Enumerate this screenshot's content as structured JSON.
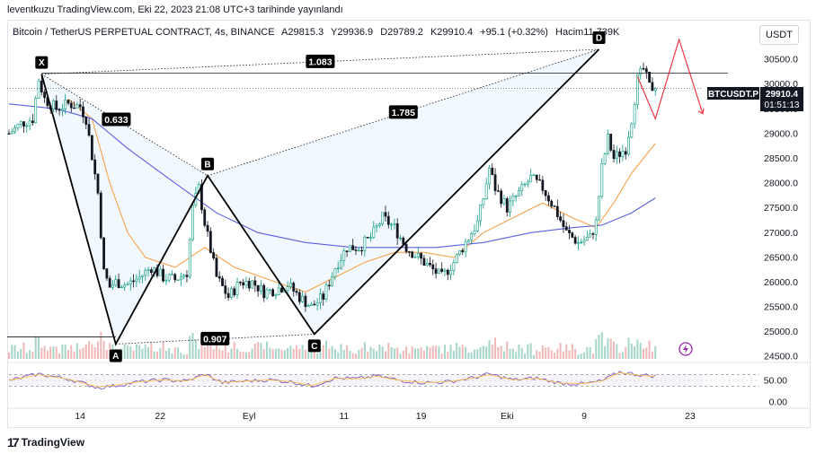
{
  "header": {
    "credit": "leventkuzu TradingView.com, Eki 22, 2023 21:08 UTC+3 tarihinde yayınlandı"
  },
  "legend": {
    "symbol": "Bitcoin / TetherUS PERPETUAL CONTRACT, 4s, BINANCE",
    "open": "A29815.3",
    "high": "Y29936.9",
    "low": "D29789.2",
    "close": "K29910.4",
    "change": "+95.1 (+0.32%)",
    "volume": "Hacim11.739K"
  },
  "currency_button": "USDT",
  "footer": {
    "brand": "TradingView"
  },
  "price_tag": {
    "ticker": "BTCUSDT.P",
    "price": "29910.4",
    "countdown": "01:51:13"
  },
  "colors": {
    "up": "#089981",
    "down": "#131722",
    "ma_fast": "#f7a14a",
    "ma_slow": "#5b5fe0",
    "pattern": "#000000",
    "projection": "#f23645",
    "rsi": "#7e57c2"
  },
  "chart_data": {
    "type": "candlestick",
    "x_ticks": [
      "14",
      "22",
      "Eyl",
      "11",
      "19",
      "Eki",
      "9",
      "23"
    ],
    "y_ticks": [
      "30500.0",
      "30000.0",
      "29500.0",
      "29000.0",
      "28500.0",
      "28000.0",
      "27500.0",
      "27000.0",
      "26500.0",
      "26000.0",
      "25500.0",
      "25000.0",
      "24500.0"
    ],
    "ylim": [
      24450,
      30900
    ],
    "close_price": 29910.4,
    "price_path": [
      [
        0,
        29000
      ],
      [
        2,
        29200
      ],
      [
        4,
        29300
      ],
      [
        5,
        30100
      ],
      [
        6,
        29700
      ],
      [
        8,
        29500
      ],
      [
        10,
        29600
      ],
      [
        12,
        29550
      ],
      [
        13,
        29300
      ],
      [
        15,
        27800
      ],
      [
        16,
        26200
      ],
      [
        17,
        25900
      ],
      [
        18,
        26000
      ],
      [
        20,
        25950
      ],
      [
        22,
        26100
      ],
      [
        24,
        26300
      ],
      [
        26,
        26100
      ],
      [
        28,
        26050
      ],
      [
        30,
        26200
      ],
      [
        31,
        27500
      ],
      [
        32,
        27900
      ],
      [
        33,
        27200
      ],
      [
        35,
        26100
      ],
      [
        37,
        25700
      ],
      [
        39,
        26000
      ],
      [
        41,
        26000
      ],
      [
        43,
        25800
      ],
      [
        45,
        25850
      ],
      [
        47,
        25950
      ],
      [
        49,
        25700
      ],
      [
        51,
        25500
      ],
      [
        53,
        25700
      ],
      [
        55,
        26300
      ],
      [
        57,
        26700
      ],
      [
        59,
        26700
      ],
      [
        61,
        26900
      ],
      [
        63,
        27300
      ],
      [
        65,
        27100
      ],
      [
        67,
        26700
      ],
      [
        69,
        26500
      ],
      [
        71,
        26300
      ],
      [
        73,
        26100
      ],
      [
        75,
        26400
      ],
      [
        77,
        26800
      ],
      [
        79,
        27200
      ],
      [
        80,
        27700
      ],
      [
        81,
        28300
      ],
      [
        82,
        27900
      ],
      [
        84,
        27500
      ],
      [
        86,
        27800
      ],
      [
        88,
        28100
      ],
      [
        90,
        27900
      ],
      [
        92,
        27500
      ],
      [
        94,
        27000
      ],
      [
        96,
        26800
      ],
      [
        98,
        26900
      ],
      [
        99,
        27200
      ],
      [
        100,
        28300
      ],
      [
        101,
        28900
      ],
      [
        102,
        28500
      ],
      [
        104,
        28700
      ],
      [
        105,
        29300
      ],
      [
        106,
        30100
      ],
      [
        107,
        30300
      ],
      [
        108,
        29950
      ],
      [
        109,
        29910.4
      ]
    ],
    "moving_averages": [
      {
        "name": "fast",
        "values": [
          [
            10,
            29700
          ],
          [
            14,
            29300
          ],
          [
            17,
            28000
          ],
          [
            20,
            27000
          ],
          [
            23,
            26500
          ],
          [
            28,
            26300
          ],
          [
            33,
            26700
          ],
          [
            38,
            26300
          ],
          [
            45,
            26000
          ],
          [
            50,
            25800
          ],
          [
            55,
            26100
          ],
          [
            60,
            26400
          ],
          [
            65,
            26600
          ],
          [
            70,
            26600
          ],
          [
            75,
            26500
          ],
          [
            80,
            27000
          ],
          [
            85,
            27300
          ],
          [
            90,
            27600
          ],
          [
            95,
            27300
          ],
          [
            99,
            27100
          ],
          [
            102,
            27600
          ],
          [
            105,
            28200
          ],
          [
            109,
            28800
          ]
        ]
      },
      {
        "name": "slow",
        "values": [
          [
            0,
            29600
          ],
          [
            8,
            29500
          ],
          [
            14,
            29300
          ],
          [
            20,
            28700
          ],
          [
            28,
            28000
          ],
          [
            35,
            27400
          ],
          [
            42,
            27000
          ],
          [
            50,
            26800
          ],
          [
            58,
            26700
          ],
          [
            66,
            26700
          ],
          [
            72,
            26700
          ],
          [
            80,
            26800
          ],
          [
            88,
            27000
          ],
          [
            95,
            27100
          ],
          [
            100,
            27150
          ],
          [
            105,
            27400
          ],
          [
            109,
            27700
          ]
        ]
      }
    ],
    "pattern_points": [
      {
        "label": "X",
        "t": 5.5,
        "price": 30200
      },
      {
        "label": "A",
        "t": 18,
        "price": 24750
      },
      {
        "label": "B",
        "t": 33.5,
        "price": 28150
      },
      {
        "label": "C",
        "t": 51.5,
        "price": 24950
      },
      {
        "label": "D",
        "t": 99.5,
        "price": 30700
      }
    ],
    "ratios": [
      {
        "label": "0.633",
        "from": "X",
        "to": "B"
      },
      {
        "label": "0.907",
        "from": "A",
        "to": "C"
      },
      {
        "label": "1.083",
        "from": "X",
        "to": "D"
      },
      {
        "label": "1.785",
        "from": "B",
        "to": "D"
      }
    ],
    "reference_level": 30220,
    "projection": [
      [
        106,
        30150
      ],
      [
        109,
        29300
      ],
      [
        113,
        30900
      ],
      [
        117,
        29400
      ]
    ],
    "rsi": {
      "ticks": [
        "50.00",
        "0.00"
      ],
      "bands": [
        70,
        30
      ],
      "values": [
        [
          0,
          50
        ],
        [
          5,
          72
        ],
        [
          10,
          55
        ],
        [
          15,
          25
        ],
        [
          18,
          32
        ],
        [
          22,
          45
        ],
        [
          26,
          52
        ],
        [
          30,
          48
        ],
        [
          33,
          72
        ],
        [
          36,
          42
        ],
        [
          40,
          48
        ],
        [
          44,
          52
        ],
        [
          48,
          44
        ],
        [
          51,
          30
        ],
        [
          55,
          58
        ],
        [
          59,
          56
        ],
        [
          62,
          66
        ],
        [
          66,
          50
        ],
        [
          70,
          42
        ],
        [
          74,
          45
        ],
        [
          78,
          58
        ],
        [
          81,
          72
        ],
        [
          85,
          52
        ],
        [
          89,
          58
        ],
        [
          93,
          40
        ],
        [
          97,
          38
        ],
        [
          100,
          48
        ],
        [
          103,
          80
        ],
        [
          106,
          70
        ],
        [
          109,
          65
        ]
      ]
    }
  }
}
